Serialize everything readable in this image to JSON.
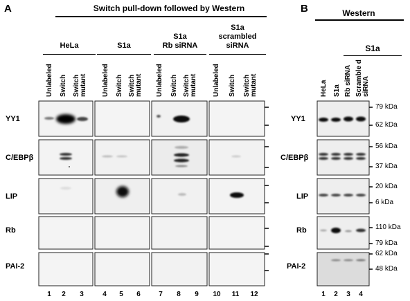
{
  "letters": {
    "a": "A",
    "b": "B"
  },
  "header_a": "Switch pull-down followed by Western",
  "header_b": "Western",
  "groups": [
    {
      "id": "hela",
      "lines": [
        "HeLa"
      ]
    },
    {
      "id": "s1a",
      "lines": [
        "S1a"
      ]
    },
    {
      "id": "s1a-rb",
      "lines": [
        "S1a",
        "Rb siRNA"
      ]
    },
    {
      "id": "s1a-scr",
      "lines": [
        "S1a",
        "scrambled",
        "siRNA"
      ]
    }
  ],
  "group_b": "S1a",
  "lane_labels_a": [
    "Unlabeled",
    "Switch",
    "Switch mutant"
  ],
  "lane_labels_b": [
    "HeLa",
    "S1a",
    "Rb siRNA",
    "Scramble d siRNA"
  ],
  "rows": [
    "YY1",
    "C/EBPβ",
    "LIP",
    "Rb",
    "PAI-2"
  ],
  "markers": {
    "yy1": [
      "79 kDa",
      "62 kDa"
    ],
    "cebp": [
      "56 kDa",
      "37 kDa"
    ],
    "lip": [
      "20 kDa",
      "6 kDa"
    ],
    "rb": [
      "110 kDa",
      "79 kDa"
    ],
    "pai2": [
      "62 kDa",
      "48 kDa"
    ]
  },
  "lane_numbers_a": [
    "1",
    "2",
    "3",
    "4",
    "5",
    "6",
    "7",
    "8",
    "9",
    "10",
    "11",
    "12"
  ],
  "lane_numbers_b": [
    "1",
    "2",
    "3",
    "4"
  ]
}
